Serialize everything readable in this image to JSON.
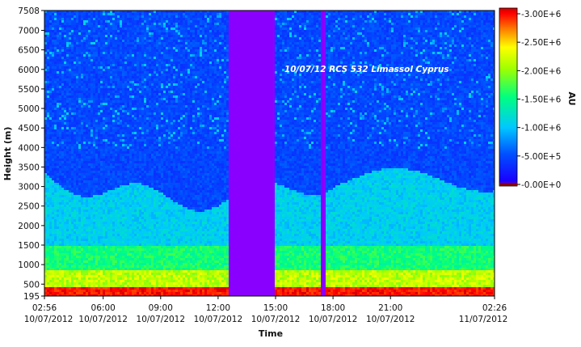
{
  "chart_data": {
    "type": "heatmap",
    "title": "",
    "annotation": "10/07/12 RCS 532 Limassol Cyprus",
    "xlabel": "Time",
    "ylabel": "Height (m)",
    "colorbar_label": "AU",
    "ylim": [
      195,
      7508
    ],
    "zlim": [
      0,
      3100000
    ],
    "x_ticks": [
      {
        "time": "02:56",
        "date": "10/07/2012"
      },
      {
        "time": "06:00",
        "date": "10/07/2012"
      },
      {
        "time": "09:00",
        "date": "10/07/2012"
      },
      {
        "time": "12:00",
        "date": "10/07/2012"
      },
      {
        "time": "15:00",
        "date": "10/07/2012"
      },
      {
        "time": "18:00",
        "date": "10/07/2012"
      },
      {
        "time": "21:00",
        "date": "10/07/2012"
      },
      {
        "time": "02:26",
        "date": "11/07/2012"
      }
    ],
    "y_ticks": [
      "7508",
      "7000",
      "6500",
      "6000",
      "5500",
      "5000",
      "4500",
      "4000",
      "3500",
      "3000",
      "2500",
      "2000",
      "1500",
      "1000",
      "500",
      "195"
    ],
    "colorbar_ticks": [
      "3.00E+6",
      "2.50E+6",
      "2.00E+6",
      "1.50E+6",
      "1.00E+6",
      "5.00E+5",
      "0.00E+0"
    ],
    "colorbar_ticks_prefixed": [
      "-3.00E+6",
      "-2.50E+6",
      "-2.00E+6",
      "-1.50E+6",
      "-1.00E+6",
      "-5.00E+5",
      "-0.00E+0"
    ],
    "no_data_gaps": [
      {
        "start": "12:30",
        "end": "14:50"
      },
      {
        "start": "17:15",
        "end": "17:30"
      }
    ],
    "colormap": [
      "#6a00ff",
      "#0000ff",
      "#00c8ff",
      "#00ff80",
      "#ffff00",
      "#ff8000",
      "#ff0000",
      "#8b0000"
    ],
    "gap_color": "#8a00ff",
    "grid": false
  }
}
